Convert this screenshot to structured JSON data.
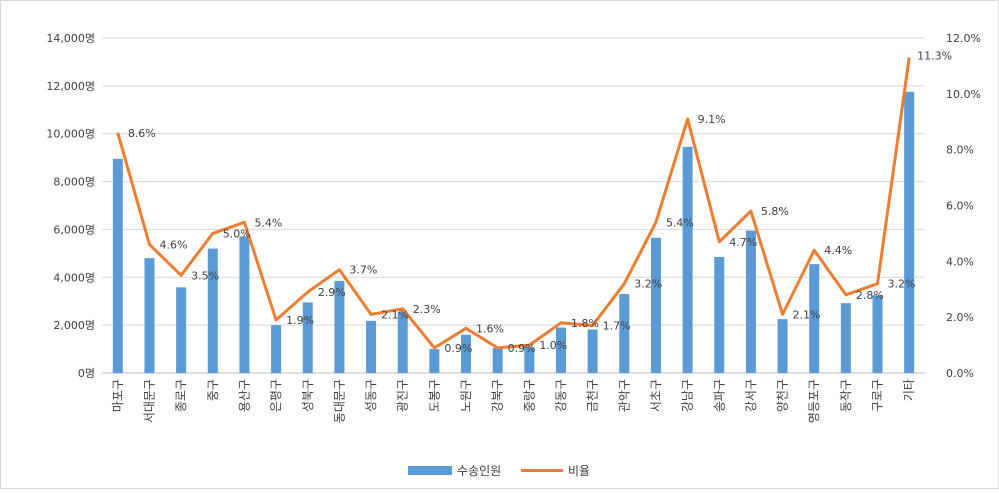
{
  "chart_data": {
    "type": "bar",
    "categories": [
      "마포구",
      "서대문구",
      "종로구",
      "중구",
      "용산구",
      "은평구",
      "성북구",
      "동대문구",
      "성동구",
      "광진구",
      "도봉구",
      "노원구",
      "강북구",
      "중랑구",
      "강동구",
      "금천구",
      "관악구",
      "서초구",
      "강남구",
      "송파구",
      "강서구",
      "양천구",
      "영등포구",
      "동작구",
      "구로구",
      "기타"
    ],
    "series": [
      {
        "name": "수송인원",
        "type": "bar",
        "axis": "left",
        "color": "#5b9bd5",
        "values": [
          8950,
          4800,
          3580,
          5200,
          5700,
          2000,
          2950,
          3850,
          2180,
          2550,
          1000,
          1600,
          1050,
          1080,
          1900,
          1820,
          3300,
          5650,
          9450,
          4850,
          5950,
          2250,
          4550,
          2920,
          3250,
          11750
        ]
      },
      {
        "name": "비율",
        "type": "line",
        "axis": "right",
        "color": "#ed7d31",
        "values": [
          8.6,
          4.6,
          3.5,
          5.0,
          5.4,
          1.9,
          2.9,
          3.7,
          2.1,
          2.3,
          0.9,
          1.6,
          0.9,
          1.0,
          1.8,
          1.7,
          3.2,
          5.4,
          9.1,
          4.7,
          5.8,
          2.1,
          4.4,
          2.8,
          3.2,
          11.3
        ]
      }
    ],
    "left_axis": {
      "min": 0,
      "max": 14000,
      "step": 2000,
      "tick_labels": [
        "0명",
        "2,000명",
        "4,000명",
        "6,000명",
        "8,000명",
        "10,000명",
        "12,000명",
        "14,000명"
      ]
    },
    "right_axis": {
      "min": 0,
      "max": 12,
      "step": 2,
      "tick_labels": [
        "0.0%",
        "2.0%",
        "4.0%",
        "6.0%",
        "8.0%",
        "10.0%",
        "12.0%"
      ]
    },
    "data_labels": [
      "8.6%",
      "4.6%",
      "3.5%",
      "5.0%",
      "5.4%",
      "1.9%",
      "2.9%",
      "3.7%",
      "2.1%",
      "2.3%",
      "0.9%",
      "1.6%",
      "0.9%",
      "1.0%",
      "1.8%",
      "1.7%",
      "3.2%",
      "5.4%",
      "9.1%",
      "4.7%",
      "5.8%",
      "2.1%",
      "4.4%",
      "2.8%",
      "3.2%",
      "11.3%"
    ],
    "grid": true,
    "legend_position": "bottom",
    "legend": [
      {
        "label": "수송인원",
        "kind": "bar",
        "color": "#5b9bd5"
      },
      {
        "label": "비율",
        "kind": "line",
        "color": "#ed7d31"
      }
    ]
  }
}
